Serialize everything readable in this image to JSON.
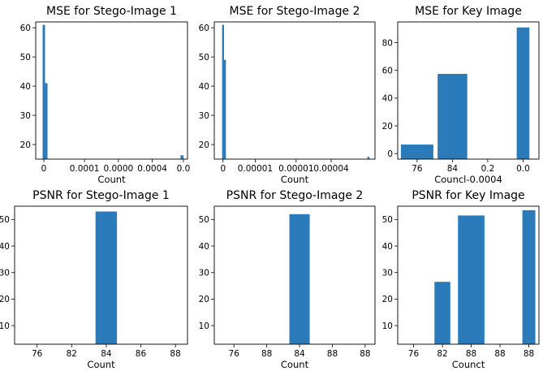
{
  "chart_data": [
    {
      "type": "bar",
      "title": "MSE for Stego-Image 1",
      "xlabel": "Count",
      "ylabel": "",
      "xlim": [
        -0.6,
        10.6
      ],
      "ylim": [
        15,
        62
      ],
      "xticks": [
        {
          "pos": 0,
          "label": "0"
        },
        {
          "pos": 3,
          "label": "0.0001"
        },
        {
          "pos": 5.5,
          "label": "0.0000"
        },
        {
          "pos": 8,
          "label": "0.0004"
        },
        {
          "pos": 10.3,
          "label": "0.0"
        }
      ],
      "yticks": [
        20,
        30,
        40,
        50,
        60
      ],
      "bars": [
        {
          "x": 0,
          "width": 0.18,
          "value": 61
        },
        {
          "x": 0.18,
          "width": 0.18,
          "value": 41
        },
        {
          "x": 10.2,
          "width": 0.22,
          "value": 16.3
        }
      ]
    },
    {
      "type": "bar",
      "title": "MSE for Stego-Image 2",
      "xlabel": "Count",
      "ylabel": "",
      "xlim": [
        -0.6,
        10.4
      ],
      "ylim": [
        15,
        62
      ],
      "xticks": [
        {
          "pos": 0,
          "label": "0"
        },
        {
          "pos": 2.2,
          "label": "0.00001"
        },
        {
          "pos": 5,
          "label": "0.00001"
        },
        {
          "pos": 7.4,
          "label": "0.00004"
        }
      ],
      "yticks": [
        20,
        30,
        40,
        50,
        60
      ],
      "bars": [
        {
          "x": 0,
          "width": 0.13,
          "value": 61
        },
        {
          "x": 0.13,
          "width": 0.13,
          "value": 49
        },
        {
          "x": 9.95,
          "width": 0.14,
          "value": 15.8
        }
      ]
    },
    {
      "type": "bar",
      "title": "MSE for Key Image",
      "xlabel": "Councl-0.0004",
      "ylabel": "",
      "xlim": [
        -0.55,
        3.45
      ],
      "ylim": [
        -4,
        95
      ],
      "xticks": [
        {
          "pos": 0,
          "label": "76"
        },
        {
          "pos": 1,
          "label": "84"
        },
        {
          "pos": 2,
          "label": "0.2"
        },
        {
          "pos": 3,
          "label": "0.0"
        }
      ],
      "yticks": [
        0,
        20,
        40,
        60,
        80
      ],
      "bars": [
        {
          "x": 0,
          "width": 0.92,
          "value": 6.5
        },
        {
          "x": 1,
          "width": 0.84,
          "value": 57.5
        },
        {
          "x": 3,
          "width": 0.36,
          "value": 91
        }
      ]
    },
    {
      "type": "bar",
      "title": "PSNR for Stego-Image 1",
      "xlabel": "Count",
      "ylabel": "",
      "xlim": [
        -0.65,
        4.35
      ],
      "ylim": [
        3,
        55
      ],
      "xticks": [
        {
          "pos": 0,
          "label": "76"
        },
        {
          "pos": 1,
          "label": "82"
        },
        {
          "pos": 2,
          "label": "84"
        },
        {
          "pos": 3,
          "label": "86"
        },
        {
          "pos": 4,
          "label": "88"
        }
      ],
      "yticks": [
        10,
        20,
        30,
        40,
        50
      ],
      "bars": [
        {
          "x": 2,
          "width": 0.62,
          "value": 53
        }
      ]
    },
    {
      "type": "bar",
      "title": "PSNR for Stego-Image 2",
      "xlabel": "Count",
      "ylabel": "",
      "xlim": [
        -0.6,
        4.3
      ],
      "ylim": [
        3,
        55
      ],
      "xticks": [
        {
          "pos": 0,
          "label": "76"
        },
        {
          "pos": 1,
          "label": "88"
        },
        {
          "pos": 2,
          "label": "84"
        },
        {
          "pos": 3,
          "label": "88"
        },
        {
          "pos": 4,
          "label": "88"
        }
      ],
      "yticks": [
        10,
        20,
        30,
        40,
        50
      ],
      "bars": [
        {
          "x": 2,
          "width": 0.62,
          "value": 52
        }
      ]
    },
    {
      "type": "bar",
      "title": "PSNR for Key Image",
      "xlabel": "Counct",
      "ylabel": "",
      "xlim": [
        -0.55,
        4.35
      ],
      "ylim": [
        3,
        55
      ],
      "xticks": [
        {
          "pos": 0,
          "label": "76"
        },
        {
          "pos": 1,
          "label": "82"
        },
        {
          "pos": 2,
          "label": "88"
        },
        {
          "pos": 3,
          "label": "88"
        },
        {
          "pos": 4,
          "label": "88"
        }
      ],
      "yticks": [
        10,
        20,
        30,
        40,
        50
      ],
      "bars": [
        {
          "x": 1,
          "width": 0.55,
          "value": 26.5
        },
        {
          "x": 2,
          "width": 0.92,
          "value": 51.5
        },
        {
          "x": 4,
          "width": 0.45,
          "value": 53.5
        }
      ]
    }
  ],
  "colors": {
    "bar": "#2b7bba",
    "frame": "#000000",
    "background": "#ffffff"
  }
}
